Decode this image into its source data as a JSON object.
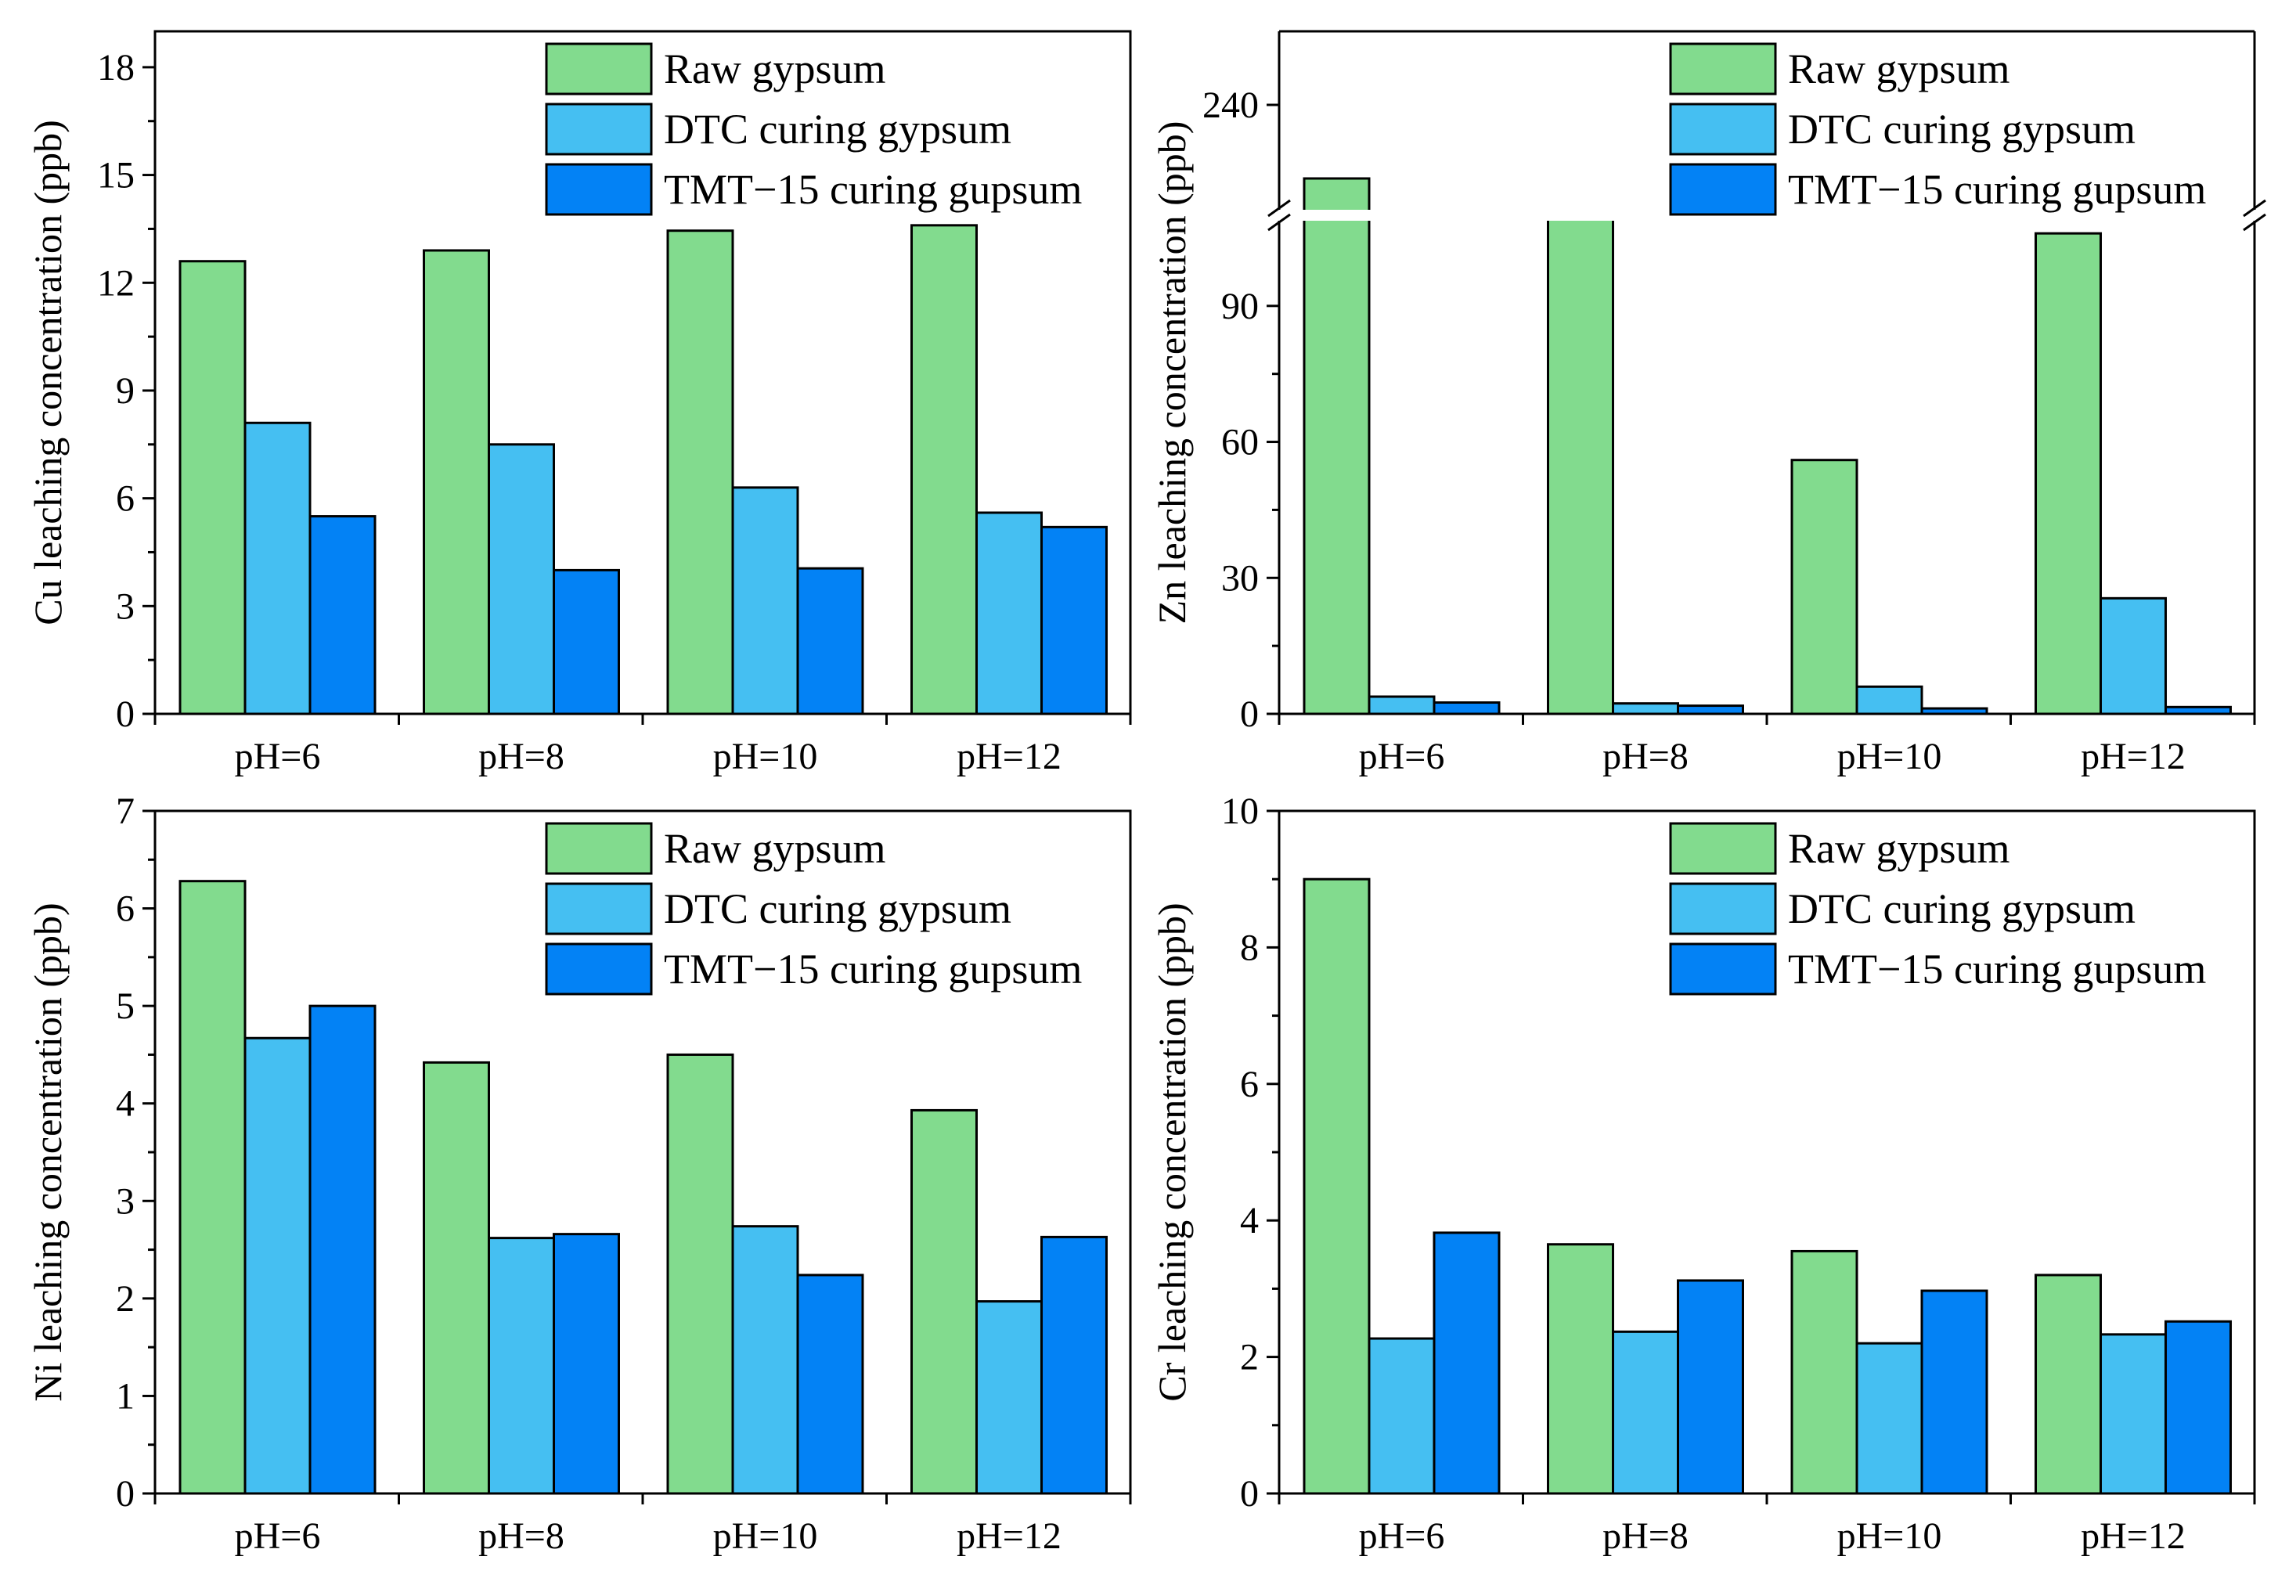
{
  "colors": {
    "raw": "#82DB8E",
    "dtc": "#45BFF2",
    "tmt": "#0382F5",
    "stroke": "#000000"
  },
  "chart_data": [
    {
      "type": "bar",
      "panel": "top-left",
      "ylabel": "Cu leaching concentration (ppb)",
      "xlabel": "",
      "categories": [
        "pH=6",
        "pH=8",
        "pH=10",
        "pH=12"
      ],
      "ylim": [
        0,
        19
      ],
      "yticks": [
        "0",
        "3",
        "6",
        "9",
        "12",
        "15",
        "18"
      ],
      "ytick_values": [
        0,
        3,
        6,
        9,
        12,
        15,
        18
      ],
      "legend_position": "top-right",
      "series": [
        {
          "name": "Raw gypsum",
          "key": "raw",
          "values": [
            12.6,
            12.9,
            13.45,
            13.6
          ]
        },
        {
          "name": "DTC curing gypsum",
          "key": "dtc",
          "values": [
            8.1,
            7.5,
            6.3,
            5.6
          ]
        },
        {
          "name": "TMT−15 curing gupsum",
          "key": "tmt",
          "values": [
            5.5,
            4.0,
            4.05,
            5.2
          ]
        }
      ]
    },
    {
      "type": "bar",
      "panel": "top-right",
      "ylabel": "Zn leaching concentration (ppb)",
      "xlabel": "",
      "categories": [
        "pH=6",
        "pH=8",
        "pH=10",
        "pH=12"
      ],
      "ylim": [
        0,
        250
      ],
      "axis_break": [
        110,
        225
      ],
      "yticks": [
        "0",
        "30",
        "60",
        "90",
        "240"
      ],
      "ytick_values": [
        0,
        30,
        60,
        90,
        240
      ],
      "legend_position": "top-right",
      "series": [
        {
          "name": "Raw gypsum",
          "key": "raw",
          "values": [
            230,
            111,
            56,
            106
          ]
        },
        {
          "name": "DTC curing gypsum",
          "key": "dtc",
          "values": [
            3.8,
            2.3,
            6.0,
            25.5
          ]
        },
        {
          "name": "TMT−15 curing gupsum",
          "key": "tmt",
          "values": [
            2.5,
            1.8,
            1.2,
            1.5
          ]
        }
      ]
    },
    {
      "type": "bar",
      "panel": "bottom-left",
      "ylabel": "Ni leaching concentration (ppb)",
      "xlabel": "",
      "categories": [
        "pH=6",
        "pH=8",
        "pH=10",
        "pH=12"
      ],
      "ylim": [
        0,
        7
      ],
      "yticks": [
        "0",
        "1",
        "2",
        "3",
        "4",
        "5",
        "6",
        "7"
      ],
      "ytick_values": [
        0,
        1,
        2,
        3,
        4,
        5,
        6,
        7
      ],
      "legend_position": "top-right",
      "series": [
        {
          "name": "Raw gypsum",
          "key": "raw",
          "values": [
            6.28,
            4.42,
            4.5,
            3.93
          ]
        },
        {
          "name": "DTC curing gypsum",
          "key": "dtc",
          "values": [
            4.67,
            2.62,
            2.74,
            1.97
          ]
        },
        {
          "name": "TMT−15 curing gupsum",
          "key": "tmt",
          "values": [
            5.0,
            2.66,
            2.24,
            2.63
          ]
        }
      ]
    },
    {
      "type": "bar",
      "panel": "bottom-right",
      "ylabel": "Cr leaching concentration (ppb)",
      "xlabel": "",
      "categories": [
        "pH=6",
        "pH=8",
        "pH=10",
        "pH=12"
      ],
      "ylim": [
        0,
        10
      ],
      "yticks": [
        "0",
        "2",
        "4",
        "6",
        "8",
        "10"
      ],
      "ytick_values": [
        0,
        2,
        4,
        6,
        8,
        10
      ],
      "legend_position": "top-right",
      "series": [
        {
          "name": "Raw gypsum",
          "key": "raw",
          "values": [
            9.0,
            3.65,
            3.55,
            3.2
          ]
        },
        {
          "name": "DTC curing gypsum",
          "key": "dtc",
          "values": [
            2.27,
            2.37,
            2.2,
            2.33
          ]
        },
        {
          "name": "TMT−15 curing gupsum",
          "key": "tmt",
          "values": [
            3.82,
            3.12,
            2.97,
            2.52
          ]
        }
      ]
    }
  ]
}
